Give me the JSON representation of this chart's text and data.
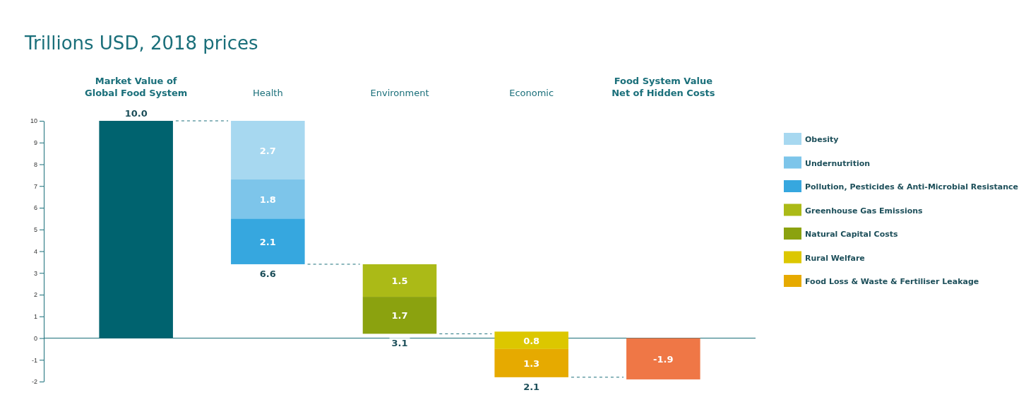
{
  "chart_data": {
    "type": "bar",
    "title": "Trillions USD, 2018 prices",
    "categories": [
      "Market Value of\nGlobal Food System",
      "Health",
      "Environment",
      "Economic",
      "Food System Value\nNet of Hidden Costs"
    ],
    "ylim": [
      -2,
      10
    ],
    "yticks": [
      -2,
      -1,
      0,
      1,
      2,
      3,
      4,
      5,
      6,
      7,
      8,
      9,
      10
    ],
    "grid": false,
    "legend": "right",
    "series": [
      {
        "color": "#00636f",
        "values": [
          10.0,
          null,
          null,
          null,
          null
        ],
        "base": [
          0,
          null,
          null,
          null,
          null
        ]
      },
      {
        "name": "Obesity",
        "color": "#a7d8f0",
        "values": [
          null,
          2.7,
          null,
          null,
          null
        ],
        "base": [
          null,
          7.3,
          null,
          null,
          null
        ],
        "value_labels": [
          null,
          "2.7",
          null,
          null,
          null
        ]
      },
      {
        "name": "Undernutrition",
        "color": "#7dc5ea",
        "values": [
          null,
          1.8,
          null,
          null,
          null
        ],
        "base": [
          null,
          5.5,
          null,
          null,
          null
        ],
        "value_labels": [
          null,
          "1.8",
          null,
          null,
          null
        ]
      },
      {
        "name": "Pollution, Pesticides & Anti-Microbial Resistance",
        "color": "#36a7df",
        "values": [
          null,
          2.1,
          null,
          null,
          null
        ],
        "base": [
          null,
          3.4,
          null,
          null,
          null
        ],
        "value_labels": [
          null,
          "2.1",
          null,
          null,
          null
        ]
      },
      {
        "name": "Greenhouse Gas Emissions",
        "color": "#abba17",
        "values": [
          null,
          null,
          1.5,
          null,
          null
        ],
        "base": [
          null,
          null,
          1.9,
          null,
          null
        ],
        "value_labels": [
          null,
          null,
          "1.5",
          null,
          null
        ]
      },
      {
        "name": "Natural Capital Costs",
        "color": "#8ba20f",
        "values": [
          null,
          null,
          1.7,
          null,
          null
        ],
        "base": [
          null,
          null,
          0.2,
          null,
          null
        ],
        "value_labels": [
          null,
          null,
          "1.7",
          null,
          null
        ]
      },
      {
        "name": "Rural Welfare",
        "color": "#dcc700",
        "values": [
          null,
          null,
          null,
          0.8,
          null
        ],
        "base": [
          null,
          null,
          null,
          -0.5,
          null
        ],
        "value_labels": [
          null,
          null,
          null,
          "0.8",
          null
        ]
      },
      {
        "name": "Food Loss & Waste & Fertiliser Leakage",
        "color": "#e6aa00",
        "values": [
          null,
          null,
          null,
          1.3,
          null
        ],
        "base": [
          null,
          null,
          null,
          -1.8,
          null
        ],
        "value_labels": [
          null,
          null,
          null,
          "1.3",
          null
        ]
      },
      {
        "color": "#ef7746",
        "values": [
          null,
          null,
          null,
          null,
          -1.9
        ],
        "base": [
          null,
          null,
          null,
          null,
          0
        ],
        "value_labels": [
          null,
          null,
          null,
          null,
          "-1.9"
        ]
      }
    ],
    "ref_lines": [
      {
        "axis": "y",
        "value": 0,
        "color": "#1a6f7a"
      }
    ],
    "totals": [
      "10.0",
      "6.6",
      "3.1",
      "2.1",
      null
    ]
  }
}
